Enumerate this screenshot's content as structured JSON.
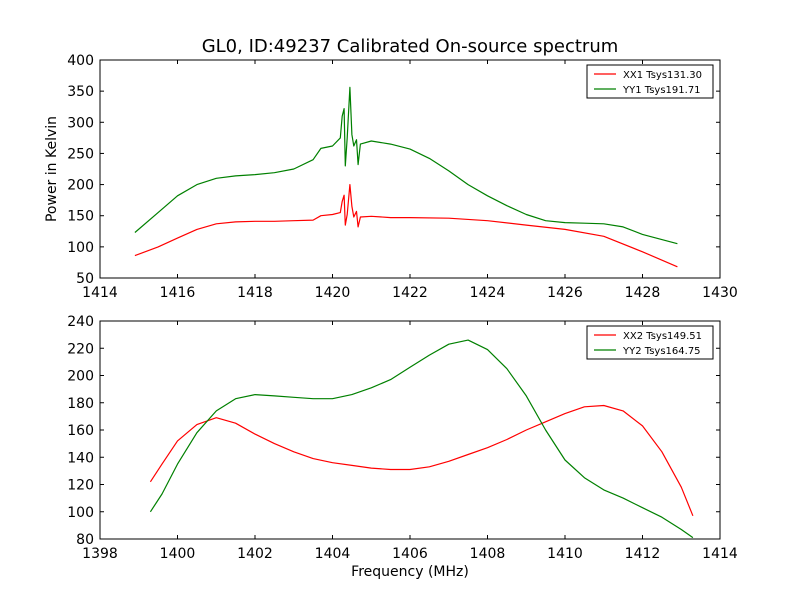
{
  "chart_data": [
    {
      "type": "line",
      "title": "GL0, ID:49237 Calibrated On-source spectrum",
      "xlabel": "",
      "ylabel": "Power in Kelvin",
      "xlim": [
        1414,
        1430
      ],
      "ylim": [
        50,
        400
      ],
      "xticks": [
        "1414",
        "1416",
        "1418",
        "1420",
        "1422",
        "1424",
        "1426",
        "1428",
        "1430"
      ],
      "yticks": [
        "50",
        "100",
        "150",
        "200",
        "250",
        "300",
        "350",
        "400"
      ],
      "grid": false,
      "legend_position": "top-right",
      "series": [
        {
          "name": "XX1 Tsys131.30",
          "color": "#ff0000",
          "points": [
            [
              1414.9,
              86
            ],
            [
              1415.5,
              100
            ],
            [
              1416.0,
              114
            ],
            [
              1416.5,
              128
            ],
            [
              1417.0,
              137
            ],
            [
              1417.5,
              140
            ],
            [
              1418.0,
              141
            ],
            [
              1418.5,
              141
            ],
            [
              1419.0,
              142
            ],
            [
              1419.5,
              143
            ],
            [
              1419.7,
              150
            ],
            [
              1420.0,
              152
            ],
            [
              1420.2,
              155
            ],
            [
              1420.25,
              173
            ],
            [
              1420.3,
              183
            ],
            [
              1420.33,
              135
            ],
            [
              1420.38,
              152
            ],
            [
              1420.45,
              200
            ],
            [
              1420.5,
              165
            ],
            [
              1420.55,
              148
            ],
            [
              1420.62,
              157
            ],
            [
              1420.66,
              132
            ],
            [
              1420.72,
              148
            ],
            [
              1421.0,
              149
            ],
            [
              1421.5,
              147
            ],
            [
              1422.0,
              147
            ],
            [
              1423.0,
              146
            ],
            [
              1424.0,
              142
            ],
            [
              1425.0,
              135
            ],
            [
              1426.0,
              128
            ],
            [
              1427.0,
              117
            ],
            [
              1428.0,
              92
            ],
            [
              1428.9,
              68
            ]
          ]
        },
        {
          "name": "YY1 Tsys191.71",
          "color": "#008000",
          "points": [
            [
              1414.9,
              123
            ],
            [
              1415.5,
              155
            ],
            [
              1416.0,
              182
            ],
            [
              1416.5,
              200
            ],
            [
              1417.0,
              210
            ],
            [
              1417.5,
              214
            ],
            [
              1418.0,
              216
            ],
            [
              1418.5,
              219
            ],
            [
              1419.0,
              225
            ],
            [
              1419.5,
              240
            ],
            [
              1419.7,
              258
            ],
            [
              1420.0,
              262
            ],
            [
              1420.2,
              275
            ],
            [
              1420.25,
              310
            ],
            [
              1420.3,
              322
            ],
            [
              1420.33,
              230
            ],
            [
              1420.38,
              275
            ],
            [
              1420.45,
              356
            ],
            [
              1420.5,
              280
            ],
            [
              1420.55,
              262
            ],
            [
              1420.62,
              272
            ],
            [
              1420.66,
              232
            ],
            [
              1420.72,
              265
            ],
            [
              1421.0,
              270
            ],
            [
              1421.5,
              265
            ],
            [
              1422.0,
              257
            ],
            [
              1422.5,
              242
            ],
            [
              1423.0,
              222
            ],
            [
              1423.5,
              200
            ],
            [
              1424.0,
              182
            ],
            [
              1424.5,
              166
            ],
            [
              1425.0,
              152
            ],
            [
              1425.5,
              142
            ],
            [
              1426.0,
              139
            ],
            [
              1426.5,
              138
            ],
            [
              1427.0,
              137
            ],
            [
              1427.5,
              132
            ],
            [
              1428.0,
              120
            ],
            [
              1428.9,
              105
            ]
          ]
        }
      ]
    },
    {
      "type": "line",
      "title": "",
      "xlabel": "Frequency (MHz)",
      "ylabel": "",
      "xlim": [
        1398,
        1414
      ],
      "ylim": [
        80,
        240
      ],
      "xticks": [
        "1398",
        "1400",
        "1402",
        "1404",
        "1406",
        "1408",
        "1410",
        "1412",
        "1414"
      ],
      "yticks": [
        "80",
        "100",
        "120",
        "140",
        "160",
        "180",
        "200",
        "220",
        "240"
      ],
      "grid": false,
      "legend_position": "top-right",
      "series": [
        {
          "name": "XX2 Tsys149.51",
          "color": "#ff0000",
          "points": [
            [
              1399.3,
              122
            ],
            [
              1399.6,
              135
            ],
            [
              1400.0,
              152
            ],
            [
              1400.5,
              164
            ],
            [
              1401.0,
              169
            ],
            [
              1401.5,
              165
            ],
            [
              1402.0,
              157
            ],
            [
              1402.5,
              150
            ],
            [
              1403.0,
              144
            ],
            [
              1403.5,
              139
            ],
            [
              1404.0,
              136
            ],
            [
              1404.5,
              134
            ],
            [
              1405.0,
              132
            ],
            [
              1405.5,
              131
            ],
            [
              1406.0,
              131
            ],
            [
              1406.5,
              133
            ],
            [
              1407.0,
              137
            ],
            [
              1407.5,
              142
            ],
            [
              1408.0,
              147
            ],
            [
              1408.5,
              153
            ],
            [
              1409.0,
              160
            ],
            [
              1409.5,
              166
            ],
            [
              1410.0,
              172
            ],
            [
              1410.5,
              177
            ],
            [
              1411.0,
              178
            ],
            [
              1411.5,
              174
            ],
            [
              1412.0,
              163
            ],
            [
              1412.5,
              144
            ],
            [
              1413.0,
              118
            ],
            [
              1413.3,
              97
            ]
          ]
        },
        {
          "name": "YY2 Tsys164.75",
          "color": "#008000",
          "points": [
            [
              1399.3,
              100
            ],
            [
              1399.6,
              113
            ],
            [
              1400.0,
              135
            ],
            [
              1400.5,
              158
            ],
            [
              1401.0,
              174
            ],
            [
              1401.5,
              183
            ],
            [
              1402.0,
              186
            ],
            [
              1402.5,
              185
            ],
            [
              1403.0,
              184
            ],
            [
              1403.5,
              183
            ],
            [
              1404.0,
              183
            ],
            [
              1404.5,
              186
            ],
            [
              1405.0,
              191
            ],
            [
              1405.5,
              197
            ],
            [
              1406.0,
              206
            ],
            [
              1406.5,
              215
            ],
            [
              1407.0,
              223
            ],
            [
              1407.5,
              226
            ],
            [
              1408.0,
              219
            ],
            [
              1408.5,
              205
            ],
            [
              1409.0,
              185
            ],
            [
              1409.5,
              160
            ],
            [
              1410.0,
              138
            ],
            [
              1410.5,
              125
            ],
            [
              1411.0,
              116
            ],
            [
              1411.5,
              110
            ],
            [
              1412.0,
              103
            ],
            [
              1412.5,
              96
            ],
            [
              1413.0,
              87
            ],
            [
              1413.3,
              81
            ]
          ]
        }
      ]
    }
  ]
}
